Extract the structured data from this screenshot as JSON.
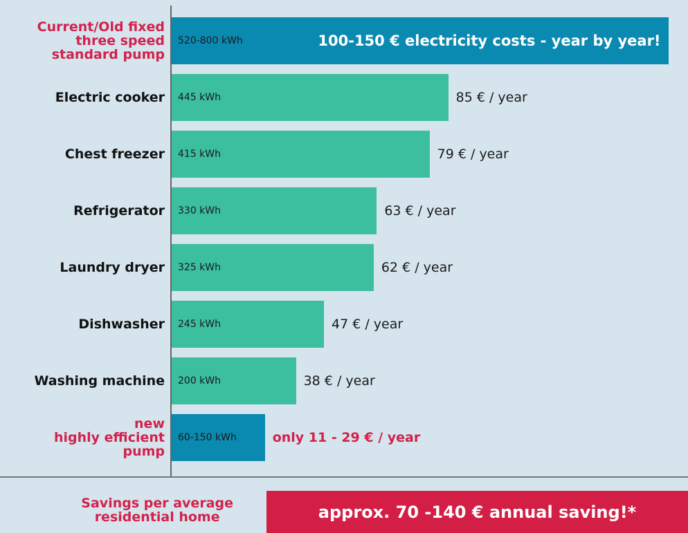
{
  "chart_data": {
    "type": "bar",
    "orientation": "horizontal",
    "categories": [
      "Current/Old fixed\nthree speed\nstandard pump",
      "Electric cooker",
      "Chest freezer",
      "Refrigerator",
      "Laundry dryer",
      "Dishwasher",
      "Washing machine",
      "new\nhighly efficient\npump"
    ],
    "values": [
      800,
      445,
      415,
      330,
      325,
      245,
      200,
      150
    ],
    "value_labels": [
      "520-800 kWh",
      "445 kWh",
      "415 kWh",
      "330 kWh",
      "325 kWh",
      "245 kWh",
      "200 kWh",
      "60-150 kWh"
    ],
    "colors": [
      "#0b8ab1",
      "#3bbf9f",
      "#3bbf9f",
      "#3bbf9f",
      "#3bbf9f",
      "#3bbf9f",
      "#3bbf9f",
      "#0b8ab1"
    ],
    "category_colors": [
      "#d4214b",
      "#111111",
      "#111111",
      "#111111",
      "#111111",
      "#111111",
      "#111111",
      "#d4214b"
    ],
    "cost_labels": [
      "100-150 € electricity costs -  year by year!",
      "85 € / year",
      "79 € / year",
      "63 € / year",
      "62 € / year",
      "47 € / year",
      "38 € / year",
      "only 11 - 29 € / year"
    ],
    "cost_label_colors": [
      "#ffffff",
      "#1a1a1a",
      "#1a1a1a",
      "#1a1a1a",
      "#1a1a1a",
      "#1a1a1a",
      "#1a1a1a",
      "#d4214b"
    ],
    "cost_label_bold": [
      true,
      false,
      false,
      false,
      false,
      false,
      false,
      true
    ],
    "footer": {
      "label": "Savings per average\nresidential home",
      "value": "approx. 70 -140 € annual saving!*",
      "color": "#d31f45"
    }
  }
}
